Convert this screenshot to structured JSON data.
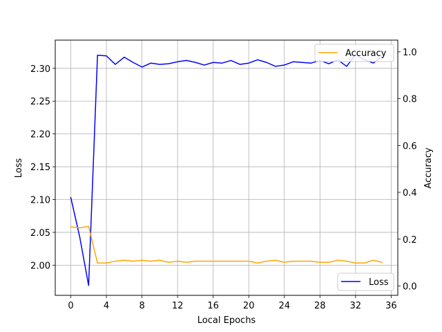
{
  "chart_data": {
    "type": "line",
    "xlabel": "Local Epochs",
    "ylabel_left": "Loss",
    "ylabel_right": "Accuracy",
    "xlim": [
      -1.75,
      36.75
    ],
    "ylim_left": [
      1.954,
      2.343
    ],
    "ylim_right": [
      -0.04,
      1.05
    ],
    "x_ticks": [
      0,
      4,
      8,
      12,
      16,
      20,
      24,
      28,
      32,
      36
    ],
    "y_ticks_left": [
      2.0,
      2.05,
      2.1,
      2.15,
      2.2,
      2.25,
      2.3
    ],
    "y_ticks_right": [
      0.0,
      0.2,
      0.4,
      0.6,
      0.8,
      1.0
    ],
    "grid": true,
    "x": [
      0,
      1,
      2,
      3,
      4,
      5,
      6,
      7,
      8,
      9,
      10,
      11,
      12,
      13,
      14,
      15,
      16,
      17,
      18,
      19,
      20,
      21,
      22,
      23,
      24,
      25,
      26,
      27,
      28,
      29,
      30,
      31,
      32,
      33,
      34,
      35
    ],
    "series": [
      {
        "name": "Loss",
        "axis": "left",
        "color": "#0000ff",
        "legend_position": "lower-right",
        "values": [
          2.103,
          2.043,
          1.969,
          2.32,
          2.319,
          2.306,
          2.317,
          2.309,
          2.302,
          2.308,
          2.306,
          2.307,
          2.31,
          2.312,
          2.309,
          2.305,
          2.309,
          2.308,
          2.312,
          2.306,
          2.308,
          2.313,
          2.309,
          2.303,
          2.305,
          2.31,
          2.309,
          2.308,
          2.312,
          2.307,
          2.313,
          2.303,
          2.321,
          2.313,
          2.308,
          2.318
        ]
      },
      {
        "name": "Accuracy",
        "axis": "right",
        "color": "#ffa500",
        "legend_position": "upper-right",
        "values": [
          0.253,
          0.248,
          0.255,
          0.098,
          0.098,
          0.106,
          0.11,
          0.106,
          0.11,
          0.106,
          0.11,
          0.101,
          0.106,
          0.101,
          0.106,
          0.106,
          0.106,
          0.106,
          0.106,
          0.106,
          0.106,
          0.098,
          0.106,
          0.11,
          0.101,
          0.106,
          0.106,
          0.106,
          0.101,
          0.101,
          0.11,
          0.106,
          0.098,
          0.098,
          0.11,
          0.101
        ]
      }
    ]
  }
}
